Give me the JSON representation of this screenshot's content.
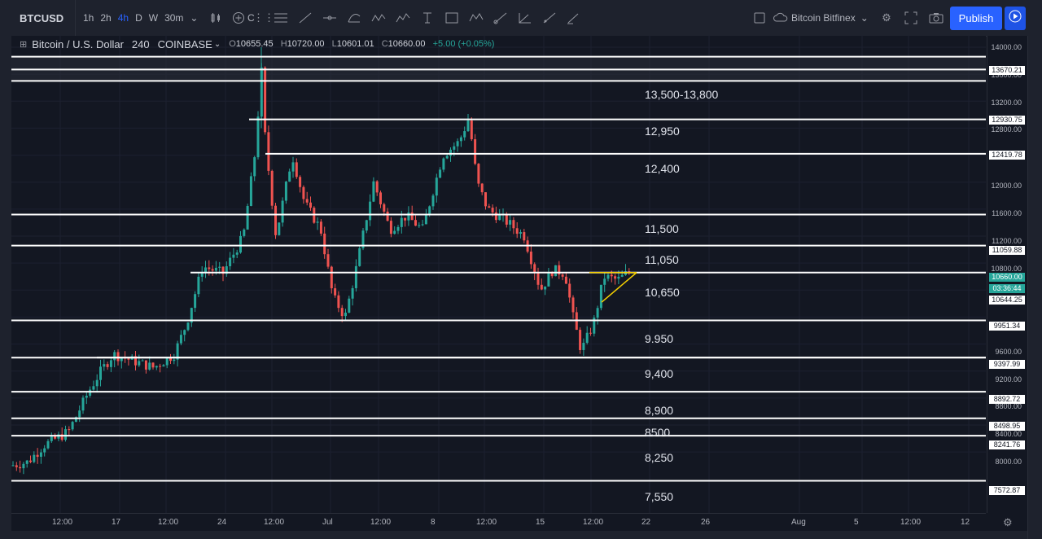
{
  "toolbar": {
    "symbol": "BTCUSD",
    "intervals": [
      "1h",
      "2h",
      "4h",
      "D",
      "W",
      "30m"
    ],
    "active_interval": "4h",
    "compare_label": "C",
    "exchange_label": "Bitcoin Bitfinex",
    "publish_label": "Publish"
  },
  "legend": {
    "title": "Bitcoin / U.S. Dollar",
    "interval": "240",
    "exchange": "COINBASE",
    "open_key": "O",
    "open": "10655.45",
    "high_key": "H",
    "high": "10720.00",
    "low_key": "L",
    "low": "10601.01",
    "close_key": "C",
    "close": "10660.00",
    "change": "+5.00 (+0.05%)"
  },
  "price_axis": {
    "ticks": [
      "14000.00",
      "13600.00",
      "13200.00",
      "12800.00",
      "12000.00",
      "11600.00",
      "11200.00",
      "10800.00",
      "9600.00",
      "9200.00",
      "8800.00",
      "8400.00",
      "8000.00"
    ],
    "tags": [
      "13670.21",
      "12930.75",
      "12419.78",
      "11059.88",
      "10660.00",
      "03:36:44",
      "10644.25",
      "9951.34",
      "9397.99",
      "8892.72",
      "8498.95",
      "8241.76",
      "7572.87"
    ]
  },
  "time_axis": {
    "labels": [
      "12:00",
      "17",
      "12:00",
      "24",
      "12:00",
      "Jul",
      "12:00",
      "8",
      "12:00",
      "15",
      "12:00",
      "22",
      "26",
      "Aug",
      "5",
      "12:00",
      "12"
    ]
  },
  "levels": {
    "labels": [
      "13,500-13,800",
      "12,950",
      "12,400",
      "11,500",
      "11,050",
      "10,650",
      "9.950",
      "9,400",
      "8,900",
      "8500",
      "8,250",
      "7,550"
    ]
  },
  "colors": {
    "background": "#131722",
    "up": "#26a69a",
    "down": "#ef5350",
    "level_line": "#ffffff",
    "triangle": "#f5d000",
    "accent": "#2962ff"
  },
  "icons": [
    "candles-icon",
    "add-compare-icon",
    "drawing-tools-icon",
    "settings-gear-icon",
    "fullscreen-icon",
    "camera-icon",
    "play-icon"
  ]
}
